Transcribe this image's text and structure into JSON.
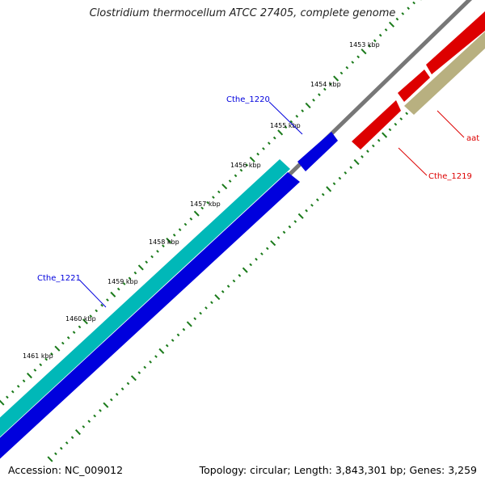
{
  "title": "Clostridium thermocellum ATCC 27405, complete genome",
  "footer": {
    "accession": "Accession: NC_009012",
    "summary": "Topology: circular; Length: 3,843,301 bp; Genes: 3,259"
  },
  "ticks": [
    "1453 kbp",
    "1454 kbp",
    "1455 kbp",
    "1456 kbp",
    "1457 kbp",
    "1458 kbp",
    "1459 kbp",
    "1460 kbp",
    "1461 kbp"
  ],
  "genes": {
    "cthe_1220": {
      "label": "Cthe_1220",
      "color": "#0000dd",
      "strand": "forward"
    },
    "cthe_1221": {
      "label": "Cthe_1221",
      "color": "#0000dd",
      "strand": "forward"
    },
    "cthe_1219": {
      "label": "Cthe_1219",
      "color": "#dd0000",
      "strand": "reverse"
    },
    "aat": {
      "label": "aat",
      "color": "#dd0000",
      "strand": "reverse"
    }
  },
  "colors": {
    "backbone": "#777777",
    "cds_forward": "#0000dd",
    "gene_forward": "#00b8b8",
    "cds_reverse": "#dd0000",
    "gene_reverse": "#b8b080",
    "tick": "#1a7a1a",
    "label_blue": "#0000dd",
    "label_red": "#dd0000"
  }
}
